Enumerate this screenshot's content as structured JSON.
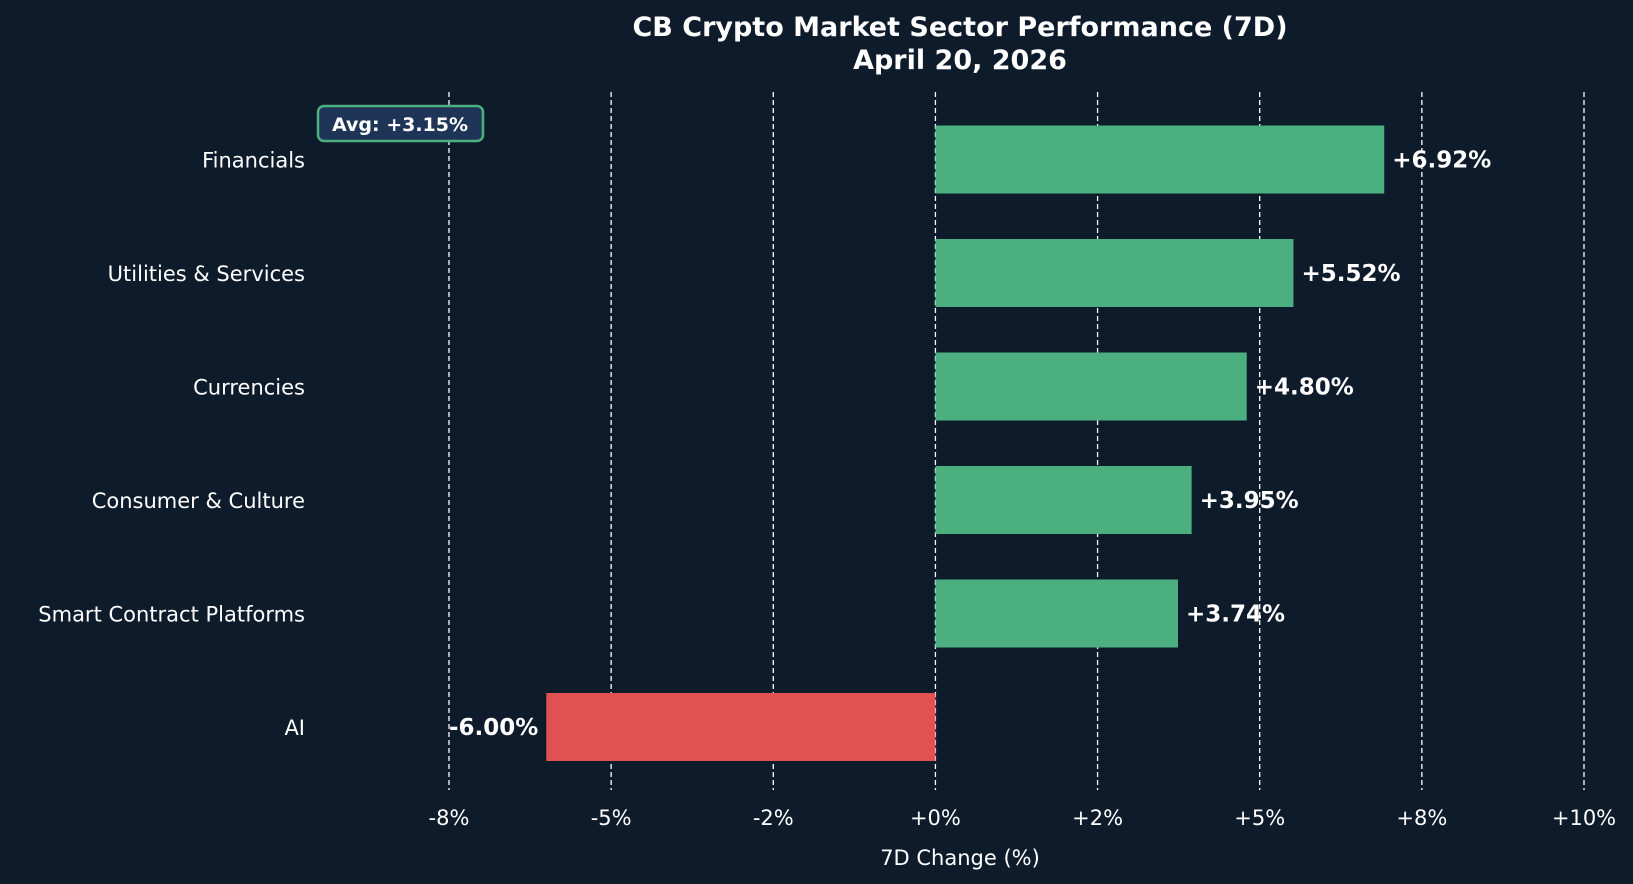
{
  "chart_data": {
    "type": "bar",
    "orientation": "horizontal",
    "title": "CB Crypto Market Sector Performance (7D)",
    "subtitle": "April 20, 2026",
    "xlabel": "7D Change (%)",
    "ylabel": "",
    "xlim": [
      -8.0,
      10.0
    ],
    "grid": true,
    "ticks": [
      {
        "value": -7.5,
        "label": "-8%"
      },
      {
        "value": -5.0,
        "label": "-5%"
      },
      {
        "value": -2.5,
        "label": "-2%"
      },
      {
        "value": 0.0,
        "label": "+0%"
      },
      {
        "value": 2.5,
        "label": "+2%"
      },
      {
        "value": 5.0,
        "label": "+5%"
      },
      {
        "value": 7.5,
        "label": "+8%"
      },
      {
        "value": 10.0,
        "label": "+10%"
      }
    ],
    "categories": [
      "Financials",
      "Utilities & Services",
      "Currencies",
      "Consumer & Culture",
      "Smart Contract Platforms",
      "AI"
    ],
    "values": [
      6.92,
      5.52,
      4.8,
      3.95,
      3.74,
      -6.0
    ],
    "value_labels": [
      "+6.92%",
      "+5.52%",
      "+4.80%",
      "+3.95%",
      "+3.74%",
      "-6.00%"
    ],
    "annotation": "Avg: +3.15%",
    "colors": {
      "background": "#0e1b2b",
      "positive": "#4caf7f",
      "negative": "#e05252",
      "annotation_fill": "#1f3557",
      "annotation_border": "#4caf7f",
      "text": "#ffffff",
      "grid": "#ffffff"
    }
  }
}
